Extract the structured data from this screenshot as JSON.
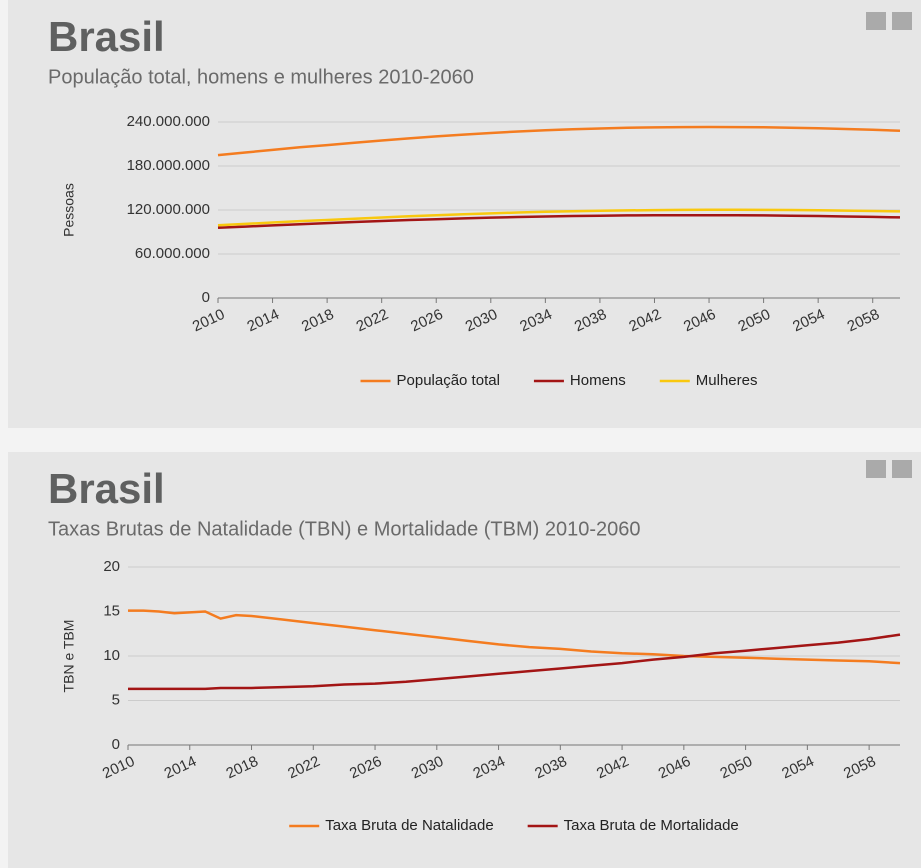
{
  "chart_data": [
    {
      "type": "line",
      "title": "Brasil",
      "subtitle": "População total, homens e mulheres 2010-2060",
      "y_label": "Pessoas",
      "x": [
        2010,
        2012,
        2014,
        2016,
        2018,
        2020,
        2022,
        2024,
        2026,
        2028,
        2030,
        2032,
        2034,
        2036,
        2038,
        2040,
        2042,
        2044,
        2046,
        2048,
        2050,
        2052,
        2054,
        2056,
        2058,
        2060
      ],
      "series": [
        {
          "name": "População total",
          "color": "#f47c20",
          "values": [
            194900000,
            198400000,
            202000000,
            205500000,
            208500000,
            211800000,
            214800000,
            217700000,
            220300000,
            222800000,
            225000000,
            227000000,
            228700000,
            230100000,
            231200000,
            232100000,
            232700000,
            233100000,
            233200000,
            233100000,
            232800000,
            232200000,
            231400000,
            230400000,
            229300000,
            228000000
          ]
        },
        {
          "name": "Homens",
          "color": "#a31515",
          "values": [
            95700000,
            97300000,
            99000000,
            100700000,
            102100000,
            103600000,
            105000000,
            106300000,
            107500000,
            108600000,
            109600000,
            110400000,
            111200000,
            111800000,
            112200000,
            112600000,
            112800000,
            112900000,
            112900000,
            112800000,
            112600000,
            112200000,
            111800000,
            111200000,
            110600000,
            109900000
          ]
        },
        {
          "name": "Mulheres",
          "color": "#f9c80e",
          "values": [
            99200000,
            101100000,
            103000000,
            104800000,
            106400000,
            108200000,
            109800000,
            111400000,
            112800000,
            114200000,
            115400000,
            116600000,
            117500000,
            118300000,
            119000000,
            119500000,
            119900000,
            120200000,
            120300000,
            120300000,
            120200000,
            120000000,
            119600000,
            119200000,
            118700000,
            118100000
          ]
        }
      ],
      "xlim": [
        2010,
        2060
      ],
      "xticks": [
        2010,
        2014,
        2018,
        2022,
        2026,
        2030,
        2034,
        2038,
        2042,
        2046,
        2050,
        2054,
        2058
      ],
      "ylim": [
        0,
        240000000
      ],
      "yticks": [
        0,
        {
          "value": 60000000,
          "label": "60.000.000"
        },
        {
          "value": 120000000,
          "label": "120.000.000"
        },
        {
          "value": 180000000,
          "label": "180.000.000"
        },
        {
          "value": 240000000,
          "label": "240.000.000"
        }
      ],
      "grid": true
    },
    {
      "type": "line",
      "title": "Brasil",
      "subtitle": "Taxas Brutas de Natalidade (TBN) e Mortalidade (TBM) 2010-2060",
      "y_label": "TBN e TBM",
      "x": [
        2010,
        2011,
        2012,
        2013,
        2014,
        2015,
        2016,
        2017,
        2018,
        2020,
        2022,
        2024,
        2026,
        2028,
        2030,
        2032,
        2034,
        2036,
        2038,
        2040,
        2042,
        2044,
        2046,
        2048,
        2050,
        2052,
        2054,
        2056,
        2058,
        2060
      ],
      "series": [
        {
          "name": "Taxa Bruta de Natalidade",
          "color": "#f47c20",
          "values": [
            15.1,
            15.1,
            15.0,
            14.8,
            14.9,
            15.0,
            14.2,
            14.6,
            14.5,
            14.1,
            13.7,
            13.3,
            12.9,
            12.5,
            12.1,
            11.7,
            11.3,
            11.0,
            10.8,
            10.5,
            10.3,
            10.2,
            10.0,
            9.9,
            9.8,
            9.7,
            9.6,
            9.5,
            9.4,
            9.2
          ]
        },
        {
          "name": "Taxa Bruta de Mortalidade",
          "color": "#a31515",
          "values": [
            6.3,
            6.3,
            6.3,
            6.3,
            6.3,
            6.3,
            6.4,
            6.4,
            6.4,
            6.5,
            6.6,
            6.8,
            6.9,
            7.1,
            7.4,
            7.7,
            8.0,
            8.3,
            8.6,
            8.9,
            9.2,
            9.6,
            9.9,
            10.3,
            10.6,
            10.9,
            11.2,
            11.5,
            11.9,
            12.4
          ]
        }
      ],
      "xlim": [
        2010,
        2060
      ],
      "xticks": [
        2010,
        2014,
        2018,
        2022,
        2026,
        2030,
        2034,
        2038,
        2042,
        2046,
        2050,
        2054,
        2058
      ],
      "ylim": [
        0,
        20
      ],
      "yticks": [
        0,
        5,
        10,
        15,
        20
      ],
      "grid": true
    }
  ]
}
